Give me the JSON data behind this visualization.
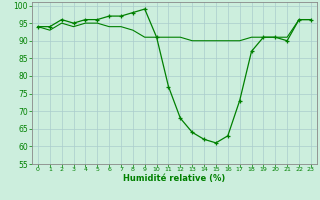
{
  "line1_x": [
    0,
    1,
    2,
    3,
    4,
    5,
    6,
    7,
    8,
    9,
    10,
    11,
    12,
    13,
    14,
    15,
    16,
    17,
    18,
    19,
    20,
    21,
    22,
    23
  ],
  "line1_y": [
    94,
    94,
    96,
    95,
    96,
    96,
    97,
    97,
    98,
    99,
    91,
    77,
    68,
    64,
    62,
    61,
    63,
    73,
    87,
    91,
    91,
    90,
    96,
    96
  ],
  "line2_x": [
    0,
    1,
    2,
    3,
    4,
    5,
    6,
    7,
    8,
    9,
    10,
    11,
    12,
    13,
    14,
    15,
    16,
    17,
    18,
    19,
    20,
    21,
    22,
    23
  ],
  "line2_y": [
    94,
    93,
    95,
    94,
    95,
    95,
    94,
    94,
    93,
    91,
    91,
    91,
    91,
    90,
    90,
    90,
    90,
    90,
    91,
    91,
    91,
    91,
    96,
    96
  ],
  "line_color": "#008000",
  "marker": "+",
  "bg_color": "#cceedd",
  "grid_color": "#aacccc",
  "xlabel": "Humidité relative (%)",
  "xlim": [
    -0.5,
    23.5
  ],
  "ylim": [
    55,
    101
  ],
  "yticks": [
    55,
    60,
    65,
    70,
    75,
    80,
    85,
    90,
    95,
    100
  ],
  "xticks": [
    0,
    1,
    2,
    3,
    4,
    5,
    6,
    7,
    8,
    9,
    10,
    11,
    12,
    13,
    14,
    15,
    16,
    17,
    18,
    19,
    20,
    21,
    22,
    23
  ],
  "tick_color": "#008000",
  "label_color": "#008000",
  "axis_color": "#888888"
}
